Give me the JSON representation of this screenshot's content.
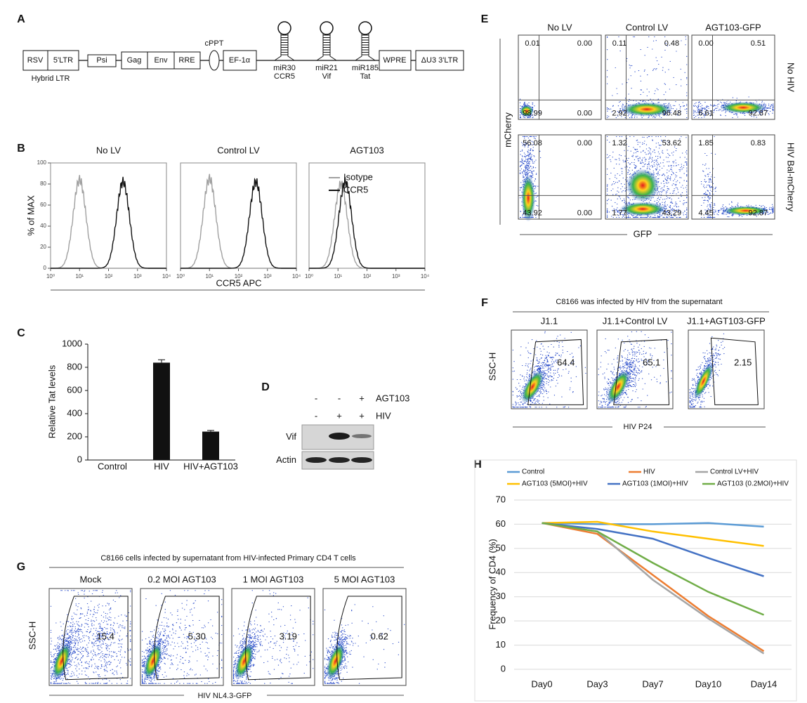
{
  "panel_letters": [
    "A",
    "B",
    "C",
    "D",
    "E",
    "F",
    "G",
    "H"
  ],
  "panel_a": {
    "rsv": "RSV",
    "ltr5": "5'LTR",
    "hybrid_ltr": "Hybrid LTR",
    "psi": "Psi",
    "gag": "Gag",
    "env": "Env",
    "rre": "RRE",
    "cppt": "cPPT",
    "ef1a": "EF-1α",
    "mir30": "miR30",
    "ccr5": "CCR5",
    "mir21": "miR21",
    "vif": "Vif",
    "mir185": "miR185",
    "tat": "Tat",
    "wpre": "WPRE",
    "ltr3": "ΔU3 3'LTR"
  },
  "panel_b": {
    "ylabel": "% of MAX",
    "xlabel": "CCR5 APC",
    "ylim": [
      0,
      100
    ],
    "yticks": [
      0,
      20,
      40,
      60,
      80,
      100
    ],
    "xlim": [
      0,
      4
    ],
    "xticks": [
      {
        "value": 0,
        "label": "10⁰"
      },
      {
        "value": 1,
        "label": "10¹"
      },
      {
        "value": 2,
        "label": "10²"
      },
      {
        "value": 3,
        "label": "10³"
      },
      {
        "value": 4,
        "label": "10⁴"
      }
    ],
    "series": [
      {
        "name": "Isotype",
        "color": "#a0a0a0"
      },
      {
        "name": "CCR5",
        "color": "#111111"
      }
    ],
    "plots": [
      {
        "title": "No LV",
        "peaks": [
          [
            1.0,
            84
          ],
          [
            2.5,
            82
          ]
        ]
      },
      {
        "title": "Control LV",
        "peaks": [
          [
            1.0,
            85
          ],
          [
            2.6,
            82
          ]
        ]
      },
      {
        "title": "AGT103",
        "peaks": [
          [
            1.1,
            80
          ],
          [
            1.25,
            82
          ]
        ]
      }
    ]
  },
  "chart_data": [
    {
      "type": "bar",
      "categories": [
        "Control",
        "HIV",
        "HIV+AGT103"
      ],
      "values": [
        0,
        840,
        245
      ],
      "errors": [
        0,
        25,
        10
      ],
      "ylabel": "Relative Tat levels",
      "ylim": [
        0,
        1000
      ],
      "yticks": [
        0,
        200,
        400,
        600,
        800,
        1000
      ],
      "color": "#111111"
    },
    {
      "type": "line",
      "categories": [
        "Day0",
        "Day3",
        "Day7",
        "Day10",
        "Day14"
      ],
      "ylabel": "Frequency of CD4 (%)",
      "ylim": [
        0,
        70
      ],
      "yticks": [
        0,
        10,
        20,
        30,
        40,
        50,
        60,
        70
      ],
      "grid": true,
      "series": [
        {
          "name": "Control",
          "color": "#5b9bd5",
          "values": [
            60.5,
            60,
            60,
            60.5,
            59
          ]
        },
        {
          "name": "HIV",
          "color": "#ed7d31",
          "values": [
            60.5,
            56,
            39,
            22,
            7.5
          ]
        },
        {
          "name": "Control LV+HIV",
          "color": "#a5a5a5",
          "values": [
            60.5,
            57,
            37,
            21,
            6.5
          ]
        },
        {
          "name": "AGT103 (5MOI)+HIV",
          "color": "#ffc000",
          "values": [
            60.5,
            61,
            57,
            54,
            51
          ]
        },
        {
          "name": "AGT103 (1MOI)+HIV",
          "color": "#4472c4",
          "values": [
            60.5,
            58,
            54,
            46,
            38.5
          ]
        },
        {
          "name": "AGT103 (0.2MOI)+HIV",
          "color": "#70ad47",
          "values": [
            60.5,
            57,
            44,
            32,
            22.5
          ]
        }
      ]
    }
  ],
  "panel_d": {
    "rows": [
      {
        "label": "AGT103",
        "signs": [
          "-",
          "-",
          "+"
        ]
      },
      {
        "label": "HIV",
        "signs": [
          "-",
          "+",
          "+"
        ]
      }
    ],
    "bands": [
      "Vif",
      "Actin"
    ]
  },
  "panel_e": {
    "columns": [
      "No LV",
      "Control LV",
      "AGT103-GFP"
    ],
    "rows": [
      "No HIV",
      "HIV Bal-mCherry"
    ],
    "ylabel": "mCherry",
    "xlabel": "GFP",
    "quadrants": [
      [
        [
          0.01,
          {
            "value": 0,
            "label": "0.00"
          },
          98.99,
          {
            "value": 0,
            "label": "0.00"
          }
        ],
        [
          0.11,
          0.48,
          2.92,
          96.48
        ],
        [
          {
            "value": 0,
            "label": "0.00"
          },
          0.51,
          6.61,
          92.87
        ]
      ],
      [
        [
          56.08,
          {
            "value": 0,
            "label": "0.00"
          },
          43.92,
          {
            "value": 0,
            "label": "0.00"
          }
        ],
        [
          1.32,
          53.62,
          1.77,
          43.29
        ],
        [
          1.85,
          0.83,
          4.45,
          92.87
        ]
      ]
    ]
  },
  "panel_f": {
    "title": "C8166 was infected by HIV from the supernatant",
    "columns": [
      "J1.1",
      "J1.1+Control LV",
      "J1.1+AGT103-GFP"
    ],
    "gates": [
      64.4,
      65.1,
      2.15
    ],
    "ylabel": "SSC-H",
    "xlabel": "HIV P24"
  },
  "panel_g": {
    "title": "C8166 cells infected by supernatant from HIV-infected Primary CD4 T cells",
    "columns": [
      "Mock",
      "0.2 MOI AGT103",
      "1 MOI AGT103",
      "5 MOI AGT103"
    ],
    "gates": [
      15.4,
      {
        "value": 5.3,
        "label": "5.30"
      },
      3.19,
      0.62
    ],
    "ylabel": "SSC-H",
    "xlabel": "HIV NL4.3-GFP"
  }
}
